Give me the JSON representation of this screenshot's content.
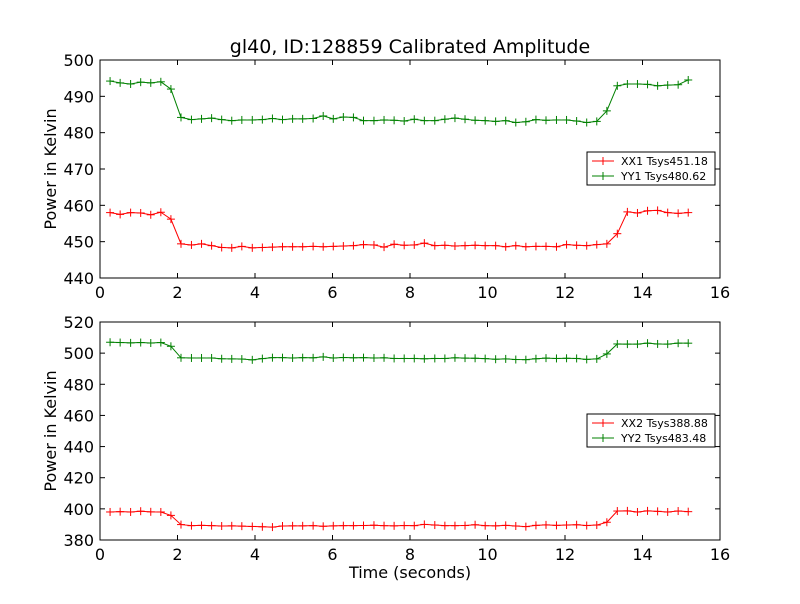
{
  "figure": {
    "title": "gl40, ID:128859 Calibrated Amplitude"
  },
  "chart_data": [
    {
      "type": "line",
      "title": "gl40, ID:128859 Calibrated Amplitude",
      "xlabel": "",
      "ylabel": "Power in Kelvin",
      "xlim": [
        0,
        16
      ],
      "ylim": [
        440,
        500
      ],
      "xticks": [
        0,
        2,
        4,
        6,
        8,
        10,
        12,
        14,
        16
      ],
      "yticks": [
        440,
        450,
        460,
        470,
        480,
        490,
        500
      ],
      "grid": false,
      "legend_position": "right",
      "x": [
        0.26,
        0.52,
        0.79,
        1.05,
        1.31,
        1.57,
        1.83,
        2.09,
        2.36,
        2.62,
        2.88,
        3.14,
        3.4,
        3.66,
        3.93,
        4.19,
        4.45,
        4.71,
        4.97,
        5.23,
        5.5,
        5.76,
        6.02,
        6.28,
        6.54,
        6.8,
        7.07,
        7.33,
        7.59,
        7.85,
        8.11,
        8.37,
        8.64,
        8.9,
        9.16,
        9.42,
        9.68,
        9.94,
        10.21,
        10.47,
        10.73,
        10.99,
        11.25,
        11.51,
        11.78,
        12.04,
        12.3,
        12.56,
        12.82,
        13.08,
        13.35,
        13.61,
        13.87,
        14.13,
        14.39,
        14.65,
        14.92,
        15.18
      ],
      "series": [
        {
          "name": "XX1 Tsys451.18",
          "color": "#ff0000",
          "marker": "+",
          "values": [
            458.0,
            457.5,
            458.0,
            457.9,
            457.4,
            458.1,
            456.2,
            449.4,
            449.1,
            449.4,
            448.9,
            448.4,
            448.3,
            448.7,
            448.3,
            448.4,
            448.5,
            448.6,
            448.6,
            448.6,
            448.7,
            448.6,
            448.7,
            448.8,
            448.9,
            449.2,
            449.1,
            448.5,
            449.3,
            449.0,
            449.1,
            449.6,
            448.9,
            449.0,
            448.8,
            448.9,
            449.0,
            448.9,
            448.9,
            448.6,
            448.9,
            448.6,
            448.7,
            448.7,
            448.6,
            449.2,
            449.0,
            448.9,
            449.2,
            449.4,
            452.2,
            458.2,
            457.9,
            458.5,
            458.6,
            458.0,
            457.8,
            458.0
          ]
        },
        {
          "name": "YY1 Tsys480.62",
          "color": "#008000",
          "marker": "+",
          "values": [
            494.2,
            493.7,
            493.4,
            493.9,
            493.7,
            494.0,
            492.0,
            484.2,
            483.6,
            483.8,
            484.0,
            483.6,
            483.3,
            483.5,
            483.5,
            483.6,
            483.9,
            483.6,
            483.8,
            483.8,
            483.9,
            484.6,
            483.8,
            484.3,
            484.2,
            483.3,
            483.3,
            483.5,
            483.4,
            483.2,
            483.7,
            483.3,
            483.3,
            483.7,
            484.0,
            483.7,
            483.4,
            483.3,
            483.1,
            483.3,
            482.8,
            483.0,
            483.6,
            483.4,
            483.5,
            483.5,
            483.2,
            482.8,
            483.1,
            486.0,
            492.9,
            493.4,
            493.4,
            493.3,
            492.9,
            493.1,
            493.2,
            494.5
          ]
        }
      ]
    },
    {
      "type": "line",
      "title": "",
      "xlabel": "Time (seconds)",
      "ylabel": "Power in Kelvin",
      "xlim": [
        0,
        16
      ],
      "ylim": [
        380,
        520
      ],
      "xticks": [
        0,
        2,
        4,
        6,
        8,
        10,
        12,
        14,
        16
      ],
      "yticks": [
        380,
        400,
        420,
        440,
        460,
        480,
        500,
        520
      ],
      "grid": false,
      "legend_position": "right",
      "x": [
        0.26,
        0.52,
        0.79,
        1.05,
        1.31,
        1.57,
        1.83,
        2.09,
        2.36,
        2.62,
        2.88,
        3.14,
        3.4,
        3.66,
        3.93,
        4.19,
        4.45,
        4.71,
        4.97,
        5.23,
        5.5,
        5.76,
        6.02,
        6.28,
        6.54,
        6.8,
        7.07,
        7.33,
        7.59,
        7.85,
        8.11,
        8.37,
        8.64,
        8.9,
        9.16,
        9.42,
        9.68,
        9.94,
        10.21,
        10.47,
        10.73,
        10.99,
        11.25,
        11.51,
        11.78,
        12.04,
        12.3,
        12.56,
        12.82,
        13.08,
        13.35,
        13.61,
        13.87,
        14.13,
        14.39,
        14.65,
        14.92,
        15.18
      ],
      "series": [
        {
          "name": "XX2 Tsys388.88",
          "color": "#ff0000",
          "marker": "+",
          "values": [
            398.0,
            398.2,
            398.0,
            398.5,
            398.1,
            398.0,
            395.8,
            389.9,
            389.2,
            389.4,
            389.2,
            389.0,
            389.1,
            388.9,
            388.7,
            388.5,
            388.3,
            389.0,
            389.1,
            389.1,
            389.2,
            388.8,
            389.1,
            389.2,
            389.2,
            389.3,
            389.5,
            389.2,
            389.1,
            389.3,
            389.2,
            390.0,
            389.6,
            389.2,
            389.2,
            389.3,
            389.8,
            389.2,
            389.1,
            389.4,
            389.0,
            388.6,
            389.4,
            389.7,
            389.4,
            389.6,
            389.8,
            389.3,
            389.6,
            391.4,
            398.6,
            398.7,
            398.0,
            398.7,
            398.4,
            398.0,
            398.6,
            398.2
          ]
        },
        {
          "name": "YY2 Tsys483.48",
          "color": "#008000",
          "marker": "+",
          "values": [
            507.0,
            506.8,
            506.6,
            506.8,
            506.5,
            506.8,
            504.4,
            497.0,
            496.9,
            496.9,
            496.9,
            496.4,
            496.3,
            496.2,
            495.7,
            496.5,
            497.1,
            497.1,
            496.9,
            497.1,
            497.0,
            497.6,
            496.9,
            497.2,
            497.0,
            497.1,
            496.9,
            497.0,
            496.6,
            496.6,
            496.6,
            496.4,
            496.6,
            496.6,
            497.0,
            496.8,
            496.7,
            496.5,
            496.1,
            496.3,
            495.9,
            495.8,
            496.4,
            496.8,
            496.6,
            496.7,
            496.6,
            496.0,
            496.3,
            499.5,
            505.9,
            505.8,
            505.8,
            506.4,
            505.9,
            505.8,
            506.4,
            506.4
          ]
        }
      ]
    }
  ]
}
